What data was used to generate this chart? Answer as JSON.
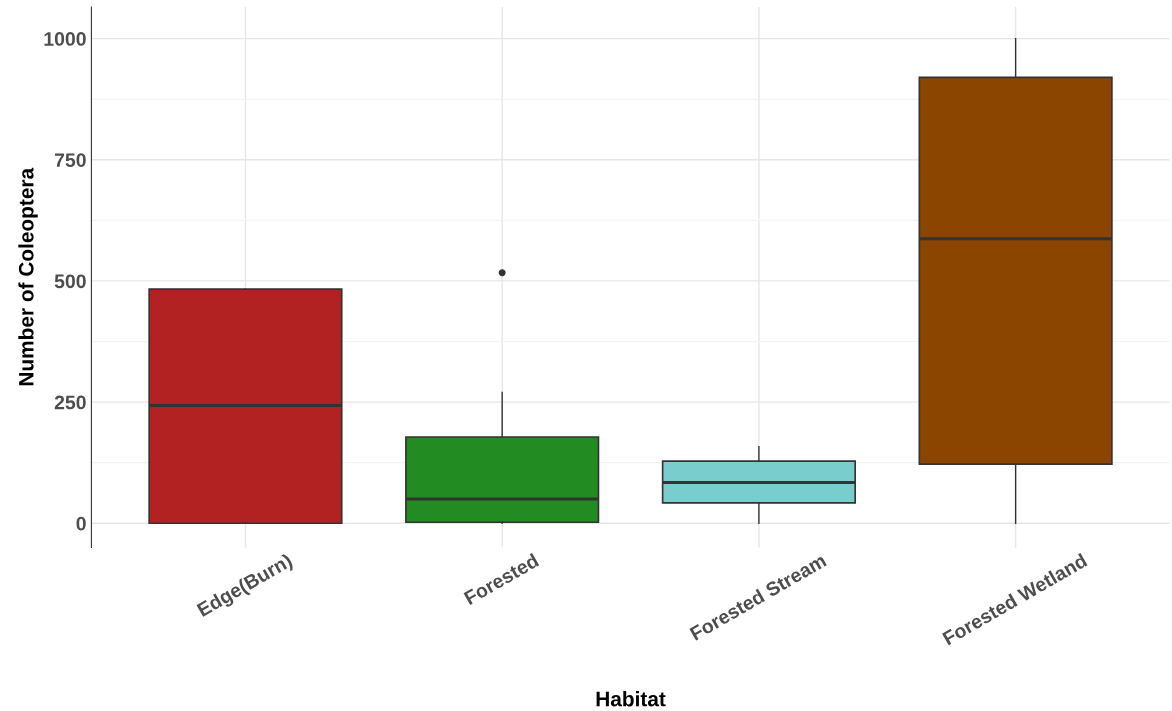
{
  "chart_data": {
    "type": "box",
    "xlabel": "Habitat",
    "ylabel": "Number of Coleoptera",
    "categories": [
      "Edge(Burn)",
      "Forested",
      "Forested Stream",
      "Forested Wetland"
    ],
    "colors": [
      "#b22222",
      "#228b22",
      "#79cdcd",
      "#8b4500"
    ],
    "boxes": [
      {
        "low": 0,
        "q1": 0,
        "median": 243,
        "q3": 483,
        "high": 483
      },
      {
        "low": 0,
        "q1": 2,
        "median": 50,
        "q3": 178,
        "high": 270,
        "outliers": [
          517
        ]
      },
      {
        "low": 0,
        "q1": 42,
        "median": 84,
        "q3": 128,
        "high": 158
      },
      {
        "low": 0,
        "q1": 122,
        "median": 587,
        "q3": 920,
        "high": 1000
      }
    ],
    "ylim": [
      -50,
      1065
    ],
    "yticks": [
      0,
      250,
      500,
      750,
      1000
    ],
    "grid": true,
    "legend": false
  }
}
